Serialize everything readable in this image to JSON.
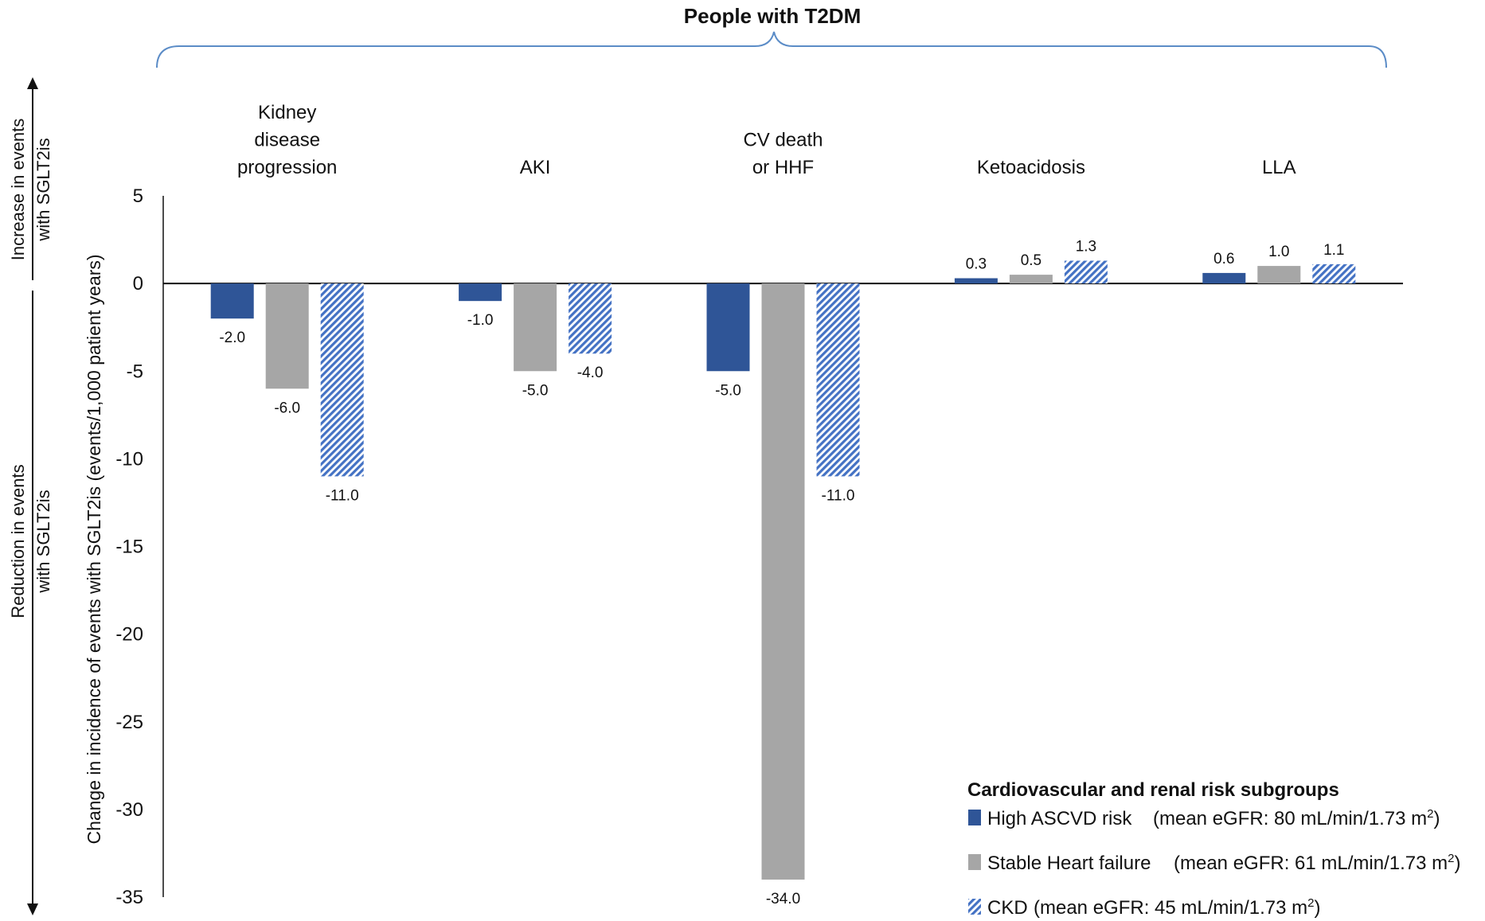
{
  "chart_data": {
    "type": "bar",
    "title": "People with T2DM",
    "categories": [
      [
        "Kidney",
        "disease",
        "progression"
      ],
      [
        "AKI"
      ],
      [
        "CV death",
        "or HHF"
      ],
      [
        "Ketoacidosis"
      ],
      [
        "LLA"
      ]
    ],
    "series": [
      {
        "name": "High ASCVD risk",
        "detail": "(mean eGFR: 80 mL/min/1.73 m",
        "superscript": "2",
        "detail_end": ")",
        "color": "#2F5597",
        "pattern": "solid",
        "values": [
          -2.0,
          -1.0,
          -5.0,
          0.3,
          0.6
        ]
      },
      {
        "name": "Stable Heart failure",
        "detail": "(mean eGFR: 61 mL/min/1.73 m",
        "superscript": "2",
        "detail_end": ")",
        "color": "#A6A6A6",
        "pattern": "solid",
        "values": [
          -6.0,
          -5.0,
          -34.0,
          0.5,
          1.0
        ]
      },
      {
        "name": "CKD",
        "detail": "(mean eGFR: 45 mL/min/1.73 m",
        "superscript": "2",
        "detail_end": ")",
        "color": "#4472C4",
        "pattern": "hatched",
        "values": [
          -11.0,
          -4.0,
          -11.0,
          1.3,
          1.1
        ]
      }
    ],
    "data_labels": [
      [
        "-2.0",
        "-1.0",
        "-5.0",
        "0.3",
        "0.6"
      ],
      [
        "-6.0",
        "-5.0",
        "-34.0",
        "0.5",
        "1.0"
      ],
      [
        "-11.0",
        "-4.0",
        "-11.0",
        "1.3",
        "1.1"
      ]
    ],
    "ylabel": "Change in incidence of events with SGLT2is (events/1,000 patient years)",
    "ylim": [
      -35,
      5
    ],
    "yticks": [
      5,
      0,
      -5,
      -10,
      -15,
      -20,
      -25,
      -30,
      -35
    ],
    "ytick_labels": [
      "5",
      "0",
      "-5",
      "-10",
      "-15",
      "-20",
      "-25",
      "-30",
      "-35"
    ],
    "side_labels": {
      "increase": [
        "Increase in events",
        "with SGLT2is"
      ],
      "reduction": [
        "Reduction in events",
        "with SGLT2is"
      ]
    },
    "legend": {
      "title": "Cardiovascular and renal risk subgroups",
      "position": "bottom-right"
    },
    "grid": false
  }
}
